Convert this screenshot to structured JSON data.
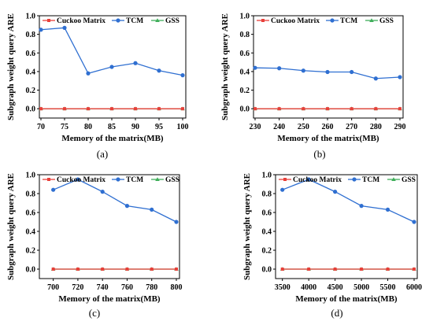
{
  "legend": [
    "Cuckoo Matrix",
    "TCM",
    "GSS"
  ],
  "series_colors": {
    "Cuckoo Matrix": "#e8403a",
    "TCM": "#2f6fd1",
    "GSS": "#3fae5a"
  },
  "chart_data": [
    {
      "type": "line",
      "caption": "(a)",
      "xlabel": "Memory of the matrix(MB)",
      "ylabel": "Subgraph weight query ARE",
      "x": [
        70,
        75,
        80,
        85,
        90,
        95,
        100
      ],
      "xlim": [
        70,
        100
      ],
      "xticks": [
        "70",
        "75",
        "80",
        "85",
        "90",
        "95",
        "100"
      ],
      "ylim": [
        -0.1,
        1.0
      ],
      "yticks": [
        "0.0",
        "0.2",
        "0.4",
        "0.6",
        "0.8",
        "1.0"
      ],
      "legend_position": "top",
      "series": [
        {
          "name": "Cuckoo Matrix",
          "values": [
            0,
            0,
            0,
            0,
            0,
            0,
            0
          ]
        },
        {
          "name": "TCM",
          "values": [
            0.85,
            0.87,
            0.38,
            0.45,
            0.49,
            0.41,
            0.36
          ]
        },
        {
          "name": "GSS",
          "values": [
            0,
            0,
            0,
            0,
            0,
            0,
            0
          ]
        }
      ]
    },
    {
      "type": "line",
      "caption": "(b)",
      "xlabel": "Memory of the matrix(MB)",
      "ylabel": "Subgraph weight query ARE",
      "x": [
        230,
        240,
        250,
        260,
        270,
        280,
        290
      ],
      "xlim": [
        230,
        290
      ],
      "xticks": [
        "230",
        "240",
        "250",
        "260",
        "270",
        "280",
        "290"
      ],
      "ylim": [
        -0.1,
        1.0
      ],
      "yticks": [
        "0.0",
        "0.2",
        "0.4",
        "0.6",
        "0.8",
        "1.0"
      ],
      "legend_position": "top",
      "series": [
        {
          "name": "Cuckoo Matrix",
          "values": [
            0,
            0,
            0,
            0,
            0,
            0,
            0
          ]
        },
        {
          "name": "TCM",
          "values": [
            0.44,
            0.435,
            0.41,
            0.395,
            0.395,
            0.325,
            0.34
          ]
        },
        {
          "name": "GSS",
          "values": [
            0,
            0,
            0,
            0,
            0,
            0,
            0
          ]
        }
      ]
    },
    {
      "type": "line",
      "caption": "(c)",
      "xlabel": "Memory of the matrix(MB)",
      "ylabel": "Subgraph weight query ARE",
      "x": [
        700,
        720,
        740,
        760,
        780,
        800
      ],
      "xlim": [
        690,
        800
      ],
      "xticks": [
        "700",
        "720",
        "740",
        "760",
        "780",
        "800"
      ],
      "ylim": [
        -0.1,
        1.0
      ],
      "yticks": [
        "0.0",
        "0.2",
        "0.4",
        "0.6",
        "0.8",
        "1.0"
      ],
      "legend_position": "top",
      "series": [
        {
          "name": "Cuckoo Matrix",
          "values": [
            0,
            0,
            0,
            0,
            0,
            0
          ]
        },
        {
          "name": "TCM",
          "values": [
            0.84,
            0.95,
            0.82,
            0.67,
            0.63,
            0.5
          ]
        },
        {
          "name": "GSS",
          "values": [
            0,
            0,
            0,
            0,
            0,
            0
          ]
        }
      ]
    },
    {
      "type": "line",
      "caption": "(d)",
      "xlabel": "Memory of the matrix(MB)",
      "ylabel": "Subgraph weight query ARE",
      "x": [
        3500,
        4000,
        4500,
        5000,
        5500,
        6000
      ],
      "xlim": [
        3400,
        6000
      ],
      "xticks": [
        "3500",
        "4000",
        "4500",
        "5000",
        "5500",
        "6000"
      ],
      "ylim": [
        -0.1,
        1.0
      ],
      "yticks": [
        "0.0",
        "0.2",
        "0.4",
        "0.6",
        "0.8",
        "1.0"
      ],
      "legend_position": "top",
      "series": [
        {
          "name": "Cuckoo Matrix",
          "values": [
            0,
            0,
            0,
            0,
            0,
            0
          ]
        },
        {
          "name": "TCM",
          "values": [
            0.84,
            0.95,
            0.82,
            0.67,
            0.63,
            0.5
          ]
        },
        {
          "name": "GSS",
          "values": [
            0,
            0,
            0,
            0,
            0,
            0
          ]
        }
      ]
    }
  ]
}
